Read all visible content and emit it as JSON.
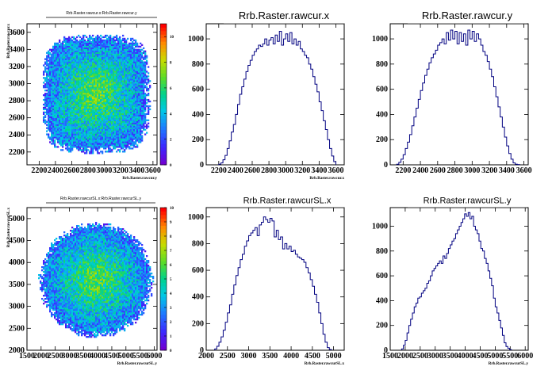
{
  "chart_data": [
    {
      "type": "heatmap",
      "title": "Rrb.Raster.rawcur.x:Rrb.Raster.rawcur.y",
      "xlabel": "Rrb.Raster.rawcur.y",
      "ylabel": "Rrb.Raster.rawcur.x",
      "xlim": [
        2050,
        3650
      ],
      "ylim": [
        2050,
        3700
      ],
      "xticks": [
        2200,
        2400,
        2600,
        2800,
        3000,
        3200,
        3400,
        3600
      ],
      "yticks": [
        2200,
        2400,
        2600,
        2800,
        3000,
        3200,
        3400,
        3600
      ],
      "colorbar": {
        "range": [
          0,
          11
        ],
        "ticks": [
          0,
          2,
          4,
          6,
          8,
          10
        ]
      },
      "shape": "rounded-rectangle",
      "center": [
        2900,
        2880
      ],
      "halfwidth": [
        650,
        680
      ],
      "peak_density": 11
    },
    {
      "type": "bar",
      "title": "Rrb.Raster.rawcur.x",
      "xlabel": "Rrb.Raster.rawcur.x",
      "ylabel": "",
      "xlim": [
        2050,
        3700
      ],
      "ylim": [
        0,
        1120
      ],
      "xticks": [
        2200,
        2400,
        2600,
        2800,
        3000,
        3200,
        3400,
        3600
      ],
      "yticks": [
        0,
        200,
        400,
        600,
        800,
        1000
      ],
      "bin_width": 25,
      "x": [
        2200,
        2225,
        2250,
        2275,
        2300,
        2325,
        2350,
        2375,
        2400,
        2425,
        2450,
        2475,
        2500,
        2525,
        2550,
        2575,
        2600,
        2625,
        2650,
        2675,
        2700,
        2725,
        2750,
        2775,
        2800,
        2825,
        2850,
        2875,
        2900,
        2925,
        2950,
        2975,
        3000,
        3025,
        3050,
        3075,
        3100,
        3125,
        3150,
        3175,
        3200,
        3225,
        3250,
        3275,
        3300,
        3325,
        3350,
        3375,
        3400,
        3425,
        3450,
        3475,
        3500,
        3525,
        3550,
        3575
      ],
      "values": [
        5,
        15,
        40,
        75,
        130,
        190,
        260,
        320,
        400,
        480,
        560,
        620,
        680,
        740,
        790,
        830,
        870,
        900,
        920,
        950,
        940,
        960,
        1000,
        950,
        990,
        1010,
        960,
        1030,
        980,
        1060,
        950,
        1000,
        1040,
        980,
        1050,
        960,
        1000,
        950,
        980,
        920,
        900,
        870,
        850,
        800,
        760,
        700,
        640,
        580,
        500,
        430,
        350,
        280,
        200,
        130,
        70,
        25
      ]
    },
    {
      "type": "bar",
      "title": "Rrb.Raster.rawcur.y",
      "xlabel": "",
      "ylabel": "",
      "xlim": [
        2050,
        3650
      ],
      "ylim": [
        0,
        1120
      ],
      "xticks": [
        2200,
        2400,
        2600,
        2800,
        3000,
        3200,
        3400,
        3600
      ],
      "yticks": [
        0,
        200,
        400,
        600,
        800,
        1000
      ],
      "bin_width": 25,
      "x": [
        2125,
        2150,
        2175,
        2200,
        2225,
        2250,
        2275,
        2300,
        2325,
        2350,
        2375,
        2400,
        2425,
        2450,
        2475,
        2500,
        2525,
        2550,
        2575,
        2600,
        2625,
        2650,
        2675,
        2700,
        2725,
        2750,
        2775,
        2800,
        2825,
        2850,
        2875,
        2900,
        2925,
        2950,
        2975,
        3000,
        3025,
        3050,
        3075,
        3100,
        3125,
        3150,
        3175,
        3200,
        3225,
        3250,
        3275,
        3300,
        3325,
        3350,
        3375,
        3400,
        3425,
        3450,
        3475,
        3500,
        3525
      ],
      "values": [
        5,
        20,
        45,
        80,
        130,
        180,
        240,
        310,
        380,
        450,
        520,
        590,
        650,
        710,
        760,
        810,
        850,
        880,
        910,
        950,
        970,
        1000,
        960,
        1050,
        990,
        1070,
        1000,
        1060,
        960,
        1050,
        980,
        1040,
        950,
        1070,
        1000,
        1060,
        980,
        1040,
        1000,
        950,
        900,
        870,
        820,
        760,
        700,
        620,
        540,
        460,
        380,
        300,
        220,
        150,
        90,
        45,
        15,
        5,
        2
      ]
    },
    {
      "type": "heatmap",
      "title": "Rrb.Raster.rawcurSL.x:Rrb.Raster.rawcurSL.y",
      "xlabel": "Rrb.Raster.rawcurSL.y",
      "ylabel": "Rrb.Raster.rawcurSL.x",
      "xlim": [
        1500,
        6100
      ],
      "ylim": [
        2000,
        5250
      ],
      "xticks": [
        1500,
        2000,
        2500,
        3000,
        3500,
        4000,
        4500,
        5000,
        5500,
        6000
      ],
      "yticks": [
        2000,
        2500,
        3000,
        3500,
        4000,
        4500,
        5000
      ],
      "colorbar": {
        "range": [
          0,
          10
        ],
        "ticks": [
          0,
          1,
          2,
          3,
          4,
          5,
          6,
          7,
          8,
          9,
          10
        ]
      },
      "shape": "ellipse",
      "center": [
        3950,
        3600
      ],
      "halfwidth": [
        2000,
        1300
      ],
      "peak_density": 10
    },
    {
      "type": "bar",
      "title": "Rrb.Raster.rawcurSL.x",
      "xlabel": "Rrb.Raster.rawcurSL.x",
      "ylabel": "",
      "xlim": [
        2000,
        5250
      ],
      "ylim": [
        0,
        1070
      ],
      "xticks": [
        2000,
        2500,
        3000,
        3500,
        4000,
        4500,
        5000
      ],
      "yticks": [
        0,
        200,
        400,
        600,
        800,
        1000
      ],
      "bin_width": 50,
      "x": [
        2200,
        2250,
        2300,
        2350,
        2400,
        2450,
        2500,
        2550,
        2600,
        2650,
        2700,
        2750,
        2800,
        2850,
        2900,
        2950,
        3000,
        3050,
        3100,
        3150,
        3200,
        3250,
        3300,
        3350,
        3400,
        3450,
        3500,
        3550,
        3600,
        3650,
        3700,
        3750,
        3800,
        3850,
        3900,
        3950,
        4000,
        4050,
        4100,
        4150,
        4200,
        4250,
        4300,
        4350,
        4400,
        4450,
        4500,
        4550,
        4600,
        4650,
        4700,
        4750,
        4800,
        4850,
        4900
      ],
      "values": [
        10,
        30,
        60,
        100,
        150,
        210,
        280,
        340,
        420,
        490,
        560,
        620,
        680,
        720,
        780,
        820,
        860,
        880,
        900,
        920,
        860,
        940,
        960,
        1000,
        980,
        960,
        990,
        970,
        850,
        900,
        830,
        850,
        760,
        800,
        760,
        780,
        740,
        750,
        720,
        700,
        690,
        680,
        660,
        620,
        580,
        530,
        480,
        420,
        360,
        280,
        200,
        120,
        60,
        20,
        5
      ]
    },
    {
      "type": "bar",
      "title": "Rrb.Raster.rawcurSL.y",
      "xlabel": "Rrb.Raster.rawcurSL.y",
      "ylabel": "",
      "xlim": [
        1500,
        6100
      ],
      "ylim": [
        0,
        1150
      ],
      "xticks": [
        1500,
        2000,
        2500,
        3000,
        3500,
        4000,
        4500,
        5000,
        5500,
        6000
      ],
      "yticks": [
        0,
        200,
        400,
        600,
        800,
        1000
      ],
      "bin_width": 60,
      "x": [
        1880,
        1940,
        2000,
        2060,
        2120,
        2180,
        2240,
        2300,
        2360,
        2420,
        2480,
        2540,
        2600,
        2660,
        2720,
        2780,
        2840,
        2900,
        2960,
        3020,
        3080,
        3140,
        3200,
        3260,
        3320,
        3380,
        3440,
        3500,
        3560,
        3620,
        3680,
        3740,
        3800,
        3860,
        3920,
        3980,
        4040,
        4100,
        4160,
        4220,
        4280,
        4340,
        4400,
        4460,
        4520,
        4580,
        4640,
        4700,
        4760,
        4820,
        4880,
        4940,
        5000,
        5060,
        5120,
        5180,
        5240,
        5300,
        5360,
        5420,
        5480
      ],
      "values": [
        10,
        40,
        80,
        140,
        200,
        250,
        300,
        350,
        380,
        420,
        430,
        460,
        480,
        500,
        540,
        560,
        600,
        640,
        660,
        680,
        700,
        720,
        700,
        760,
        740,
        780,
        820,
        850,
        880,
        900,
        940,
        970,
        1000,
        1030,
        1060,
        1100,
        1080,
        1110,
        1060,
        1080,
        1000,
        970,
        940,
        880,
        820,
        800,
        740,
        700,
        640,
        580,
        520,
        420,
        350,
        300,
        240,
        180,
        120,
        60,
        30,
        15,
        5
      ]
    }
  ]
}
